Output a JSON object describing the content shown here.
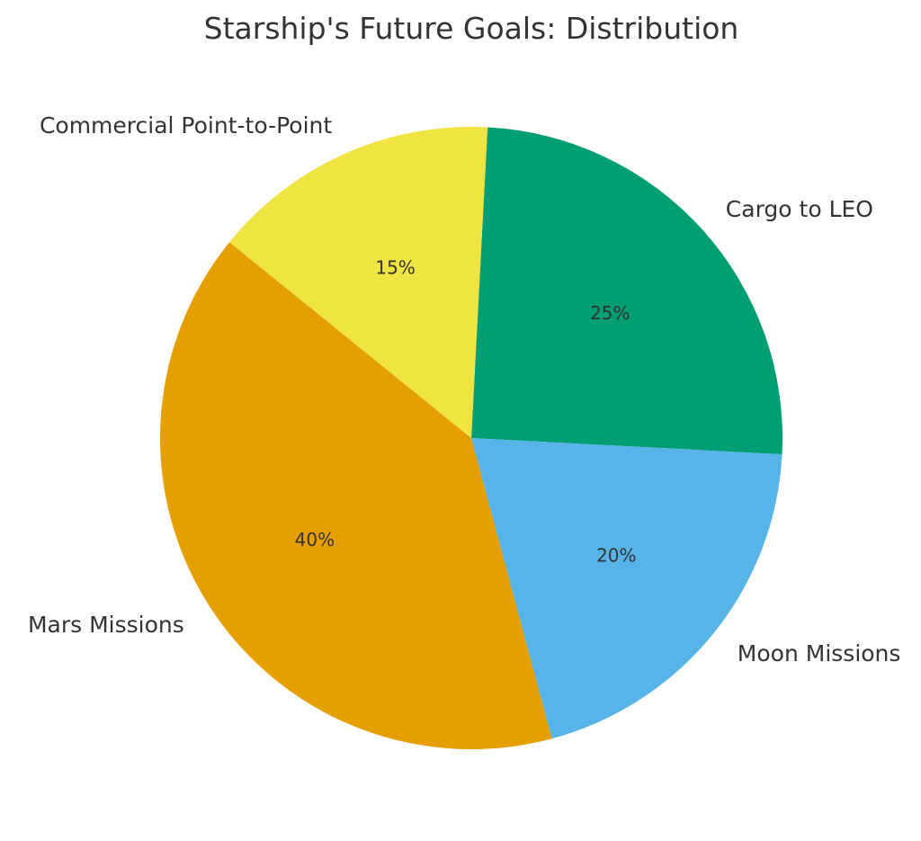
{
  "chart_data": {
    "type": "pie",
    "title": "Starship's Future Goals: Distribution",
    "labels": [
      "Cargo to LEO",
      "Moon Missions",
      "Mars Missions",
      "Commercial Point-to-Point"
    ],
    "values": [
      25,
      20,
      40,
      15
    ],
    "percent_labels": [
      "25%",
      "20%",
      "40%",
      "15%"
    ],
    "colors": [
      "#009E73",
      "#56B4E9",
      "#E69F00",
      "#F0E442"
    ],
    "start_angle_deg": 87,
    "direction": "clockwise",
    "legend": "none"
  }
}
